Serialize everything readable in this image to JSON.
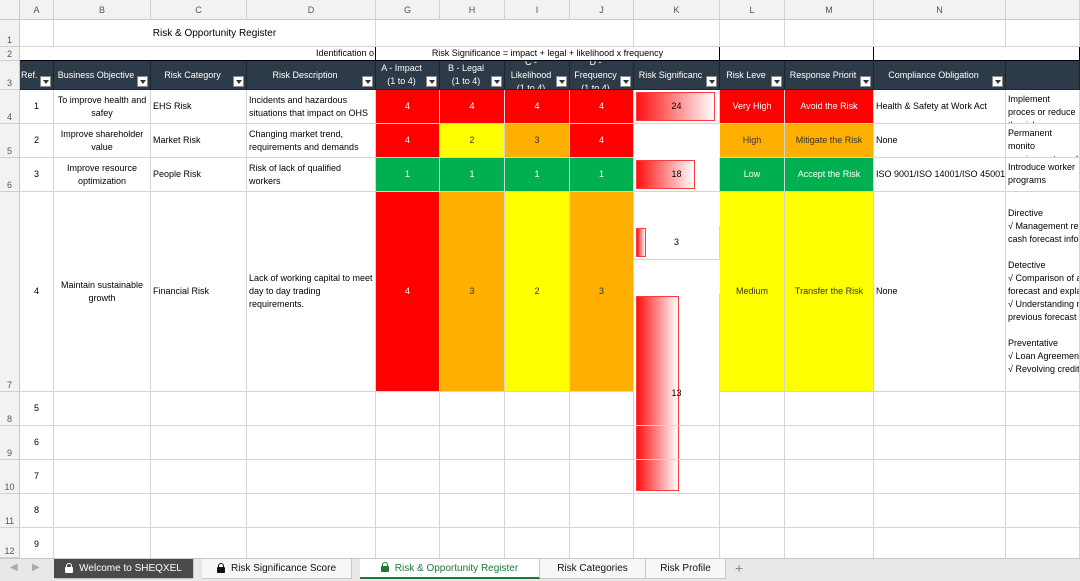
{
  "columns": [
    "A",
    "B",
    "C",
    "D",
    "G",
    "H",
    "I",
    "J",
    "K",
    "L",
    "M",
    "N"
  ],
  "rows": [
    "1",
    "2",
    "3",
    "4",
    "5",
    "6",
    "7",
    "8",
    "9",
    "10",
    "11",
    "12"
  ],
  "title": "Risk & Opportunity Register",
  "group_identification": "Identification o",
  "group_significance": "Risk Significance = impact + legal + likelihood x  frequency",
  "headers": {
    "ref": "Ref.",
    "objective": "Business Objective",
    "category": "Risk Category",
    "description": "Risk Description",
    "impact_1": "A - Impact",
    "impact_2": "(1 to 4)",
    "legal_1": "B - Legal",
    "legal_2": "(1 to 4)",
    "likelihood_1": "C - Likelihood",
    "likelihood_2": "(1 to 4)",
    "frequency_1": "D - Frequency",
    "frequency_2": "(1 to 4)",
    "significance": "Risk Significanc",
    "level": "Risk Leve",
    "priority": "Response Priorit",
    "compliance": "Compliance Obligation"
  },
  "records": [
    {
      "ref": "1",
      "objective": "To improve health and safey",
      "category": "EHS Risk",
      "description": "Incidents and hazardous situations that impact on OHS",
      "impact": "4",
      "legal": "4",
      "likelihood": "4",
      "frequency": "4",
      "significance": "24",
      "significance_value": 24,
      "level": "Very High",
      "priority": "Avoid the Risk",
      "compliance": "Health & Safety at Work Act",
      "controls": "Implement proces or reduce the risk"
    },
    {
      "ref": "2",
      "objective": "Improve shareholder value",
      "category": "Market Risk",
      "description": "Changing market trend, requirements and demands",
      "impact": "4",
      "legal": "2",
      "likelihood": "3",
      "frequency": "4",
      "significance": "18",
      "significance_value": 18,
      "level": "High",
      "priority": "Mitigate the Risk",
      "compliance": "None",
      "controls": "Permanent monito requirements and"
    },
    {
      "ref": "3",
      "objective": "Improve resource optimization",
      "category": "People Risk",
      "description": "Risk of lack of qualified workers",
      "impact": "1",
      "legal": "1",
      "likelihood": "1",
      "frequency": "1",
      "significance": "3",
      "significance_value": 3,
      "level": "Low",
      "priority": "Accept the Risk",
      "compliance": "ISO 9001/ISO 14001/ISO 45001",
      "controls": "Introduce worker programs"
    },
    {
      "ref": "4",
      "objective": "Maintain sustainable growth",
      "category": "Financial Risk",
      "description": "Lack of working capital to meet day to day trading requirements.",
      "impact": "4",
      "legal": "3",
      "likelihood": "2",
      "frequency": "3",
      "significance": "13",
      "significance_value": 13,
      "level": "Medium",
      "priority": "Transfer the Risk",
      "compliance": "None",
      "controls_lines": [
        "Directive",
        "√ Management re",
        "cash forecast info",
        "",
        "Detective",
        "√ Comparison of a",
        "forecast and expla",
        "√ Understanding r",
        "previous forecast",
        "",
        "Preventative",
        "√ Loan Agreemen",
        "√ Revolving credit"
      ]
    }
  ],
  "empty_refs": [
    "5",
    "6",
    "7",
    "8",
    "9"
  ],
  "tabs": [
    {
      "label": "Welcome to SHEQXEL",
      "locked": true,
      "active": false
    },
    {
      "label": "Risk Significance Score",
      "locked": true,
      "active": false
    },
    {
      "label": "Risk & Opportunity Register",
      "locked": true,
      "active": true
    },
    {
      "label": "Risk Categories",
      "locked": false,
      "active": false
    },
    {
      "label": "Risk Profile",
      "locked": false,
      "active": false
    }
  ],
  "add_tab_label": "+",
  "nav_first": "◀",
  "nav_last": "▶"
}
